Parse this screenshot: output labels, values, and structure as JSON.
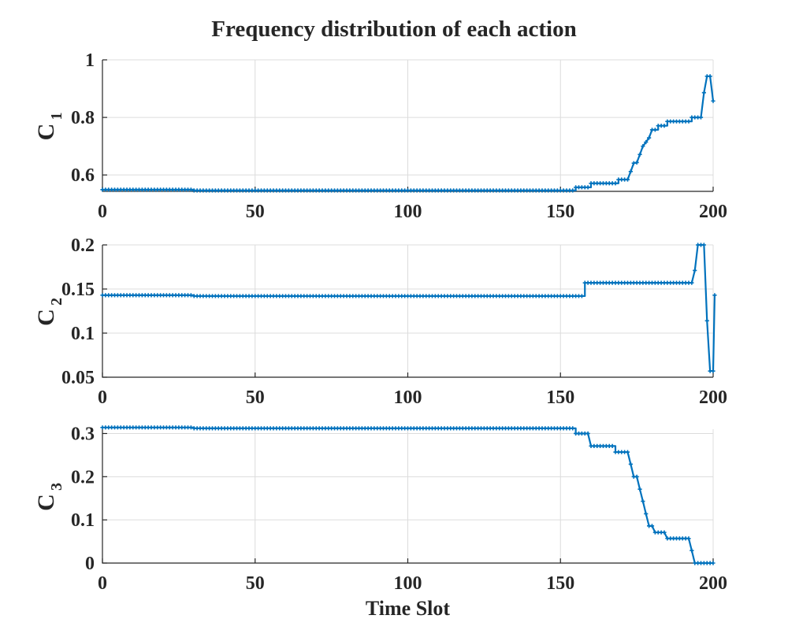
{
  "figure": {
    "title": "Frequency distribution of each action",
    "series_color": "#0072BD"
  },
  "chart_data": [
    {
      "type": "line",
      "title": "",
      "ylabel_main": "C",
      "ylabel_sub": "1",
      "xlabel": "",
      "xlim": [
        0,
        200
      ],
      "ylim": [
        0.543,
        1.0
      ],
      "xticks": [
        0,
        50,
        100,
        150,
        200
      ],
      "xtick_labels": [
        "0",
        "50",
        "100",
        "150",
        "200"
      ],
      "yticks": [
        0.6,
        0.8,
        1.0
      ],
      "ytick_labels": [
        "0.6",
        "0.8",
        "1"
      ],
      "grid": true,
      "series": [
        {
          "values": [
            [
              0,
              0.549
            ],
            [
              30,
              0.549
            ],
            [
              30,
              0.546
            ],
            [
              155,
              0.546
            ],
            [
              155,
              0.557
            ],
            [
              160,
              0.557
            ],
            [
              160,
              0.571
            ],
            [
              169,
              0.571
            ],
            [
              169,
              0.584
            ],
            [
              172,
              0.584
            ],
            [
              173,
              0.612
            ],
            [
              174,
              0.641
            ],
            [
              175,
              0.643
            ],
            [
              176,
              0.671
            ],
            [
              177,
              0.7
            ],
            [
              178,
              0.714
            ],
            [
              179,
              0.729
            ],
            [
              180,
              0.757
            ],
            [
              182,
              0.757
            ],
            [
              182,
              0.771
            ],
            [
              185,
              0.771
            ],
            [
              185,
              0.786
            ],
            [
              193,
              0.786
            ],
            [
              193,
              0.8
            ],
            [
              196,
              0.8
            ],
            [
              197,
              0.886
            ],
            [
              198,
              0.943
            ],
            [
              199,
              0.943
            ],
            [
              200,
              0.857
            ]
          ]
        }
      ]
    },
    {
      "type": "line",
      "title": "",
      "ylabel_main": "C",
      "ylabel_sub": "2",
      "xlabel": "",
      "xlim": [
        0,
        200
      ],
      "ylim": [
        0.05,
        0.2
      ],
      "xticks": [
        0,
        50,
        100,
        150,
        200
      ],
      "xtick_labels": [
        "0",
        "50",
        "100",
        "150",
        "200"
      ],
      "yticks": [
        0.05,
        0.1,
        0.15,
        0.2
      ],
      "ytick_labels": [
        "0.05",
        "0.1",
        "0.15",
        "0.2"
      ],
      "grid": true,
      "series": [
        {
          "values": [
            [
              0,
              0.143
            ],
            [
              30,
              0.143
            ],
            [
              30,
              0.142
            ],
            [
              158,
              0.142
            ],
            [
              158,
              0.157
            ],
            [
              193,
              0.157
            ],
            [
              194,
              0.171
            ],
            [
              195,
              0.2
            ],
            [
              197,
              0.2
            ],
            [
              198,
              0.114
            ],
            [
              199,
              0.057
            ],
            [
              200,
              0.057
            ],
            [
              200.5,
              0.143
            ]
          ]
        }
      ]
    },
    {
      "type": "line",
      "title": "",
      "ylabel_main": "C",
      "ylabel_sub": "3",
      "xlabel": "Time Slot",
      "xlim": [
        0,
        200
      ],
      "ylim": [
        0,
        0.31
      ],
      "xticks": [
        0,
        50,
        100,
        150,
        200
      ],
      "xtick_labels": [
        "0",
        "50",
        "100",
        "150",
        "200"
      ],
      "yticks": [
        0,
        0.1,
        0.2,
        0.3
      ],
      "ytick_labels": [
        "0",
        "0.1",
        "0.2",
        "0.3"
      ],
      "grid": true,
      "series": [
        {
          "values": [
            [
              0,
              0.314
            ],
            [
              30,
              0.314
            ],
            [
              30,
              0.312
            ],
            [
              155,
              0.312
            ],
            [
              155,
              0.3
            ],
            [
              159,
              0.3
            ],
            [
              160,
              0.271
            ],
            [
              168,
              0.271
            ],
            [
              168,
              0.257
            ],
            [
              172,
              0.257
            ],
            [
              173,
              0.229
            ],
            [
              174,
              0.2
            ],
            [
              175,
              0.2
            ],
            [
              176,
              0.171
            ],
            [
              177,
              0.143
            ],
            [
              178,
              0.114
            ],
            [
              179,
              0.086
            ],
            [
              180,
              0.086
            ],
            [
              181,
              0.071
            ],
            [
              184,
              0.071
            ],
            [
              185,
              0.057
            ],
            [
              192,
              0.057
            ],
            [
              193,
              0.029
            ],
            [
              194,
              0.0
            ],
            [
              200,
              0.0
            ]
          ]
        }
      ]
    }
  ]
}
